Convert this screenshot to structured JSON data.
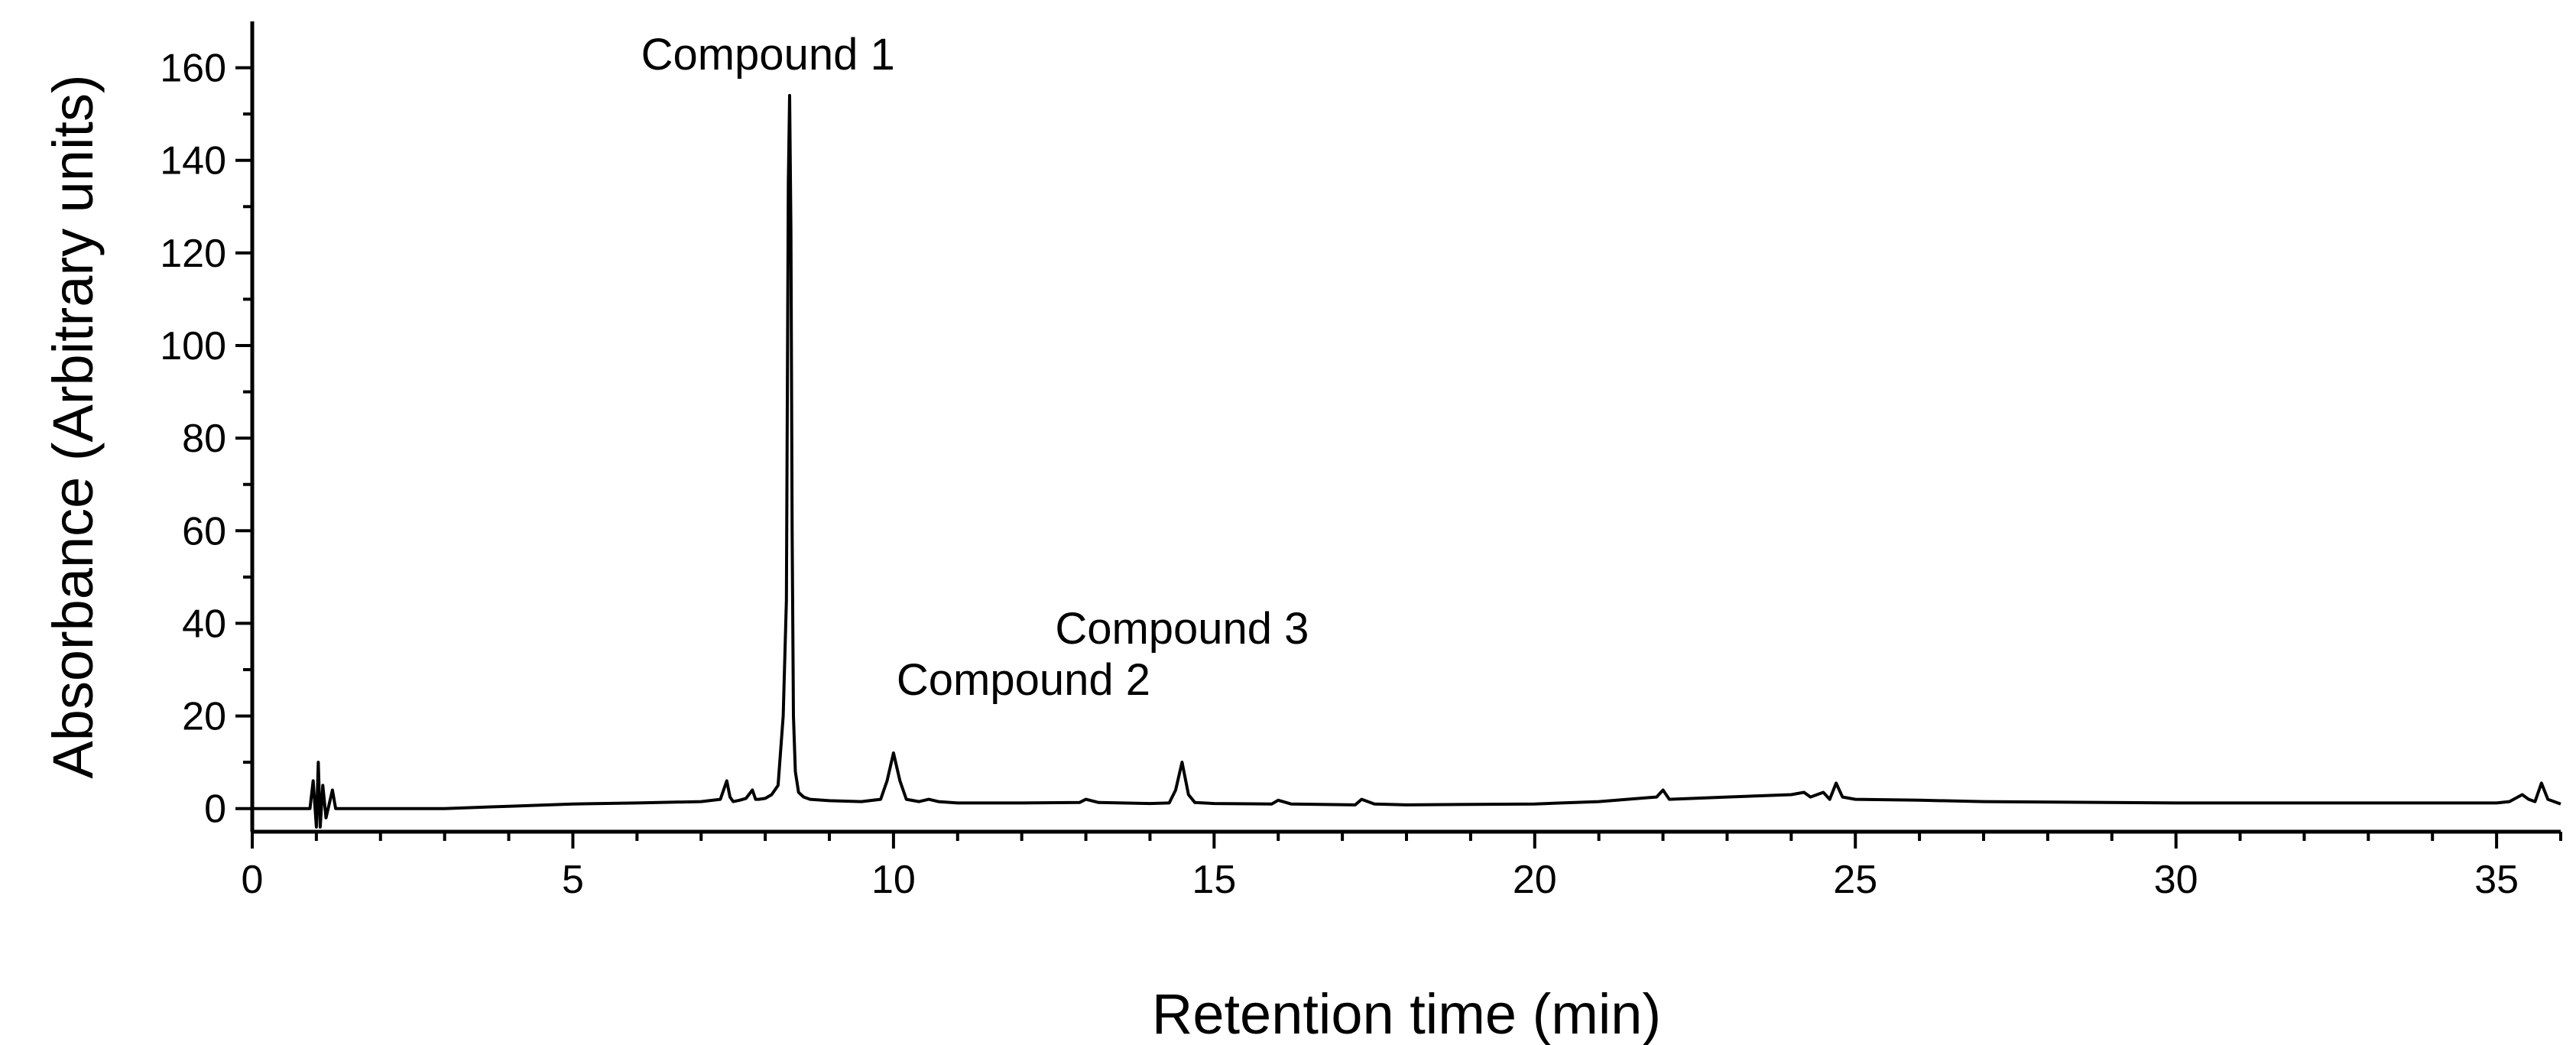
{
  "chart_data": {
    "type": "line",
    "title": "",
    "xlabel": "Retention time (min)",
    "ylabel": "Absorbance (Arbitrary units)",
    "xlim": [
      0,
      36
    ],
    "ylim": [
      -5,
      170
    ],
    "x_ticks": [
      "0",
      "5",
      "10",
      "15",
      "20",
      "25",
      "30",
      "35"
    ],
    "y_ticks": [
      "0",
      "20",
      "40",
      "60",
      "80",
      "100",
      "120",
      "140",
      "160"
    ],
    "legend": "none",
    "grid": false,
    "color": "#000000",
    "annotations": [
      {
        "text": "Compound 1",
        "x": 8.4,
        "y": 155
      },
      {
        "text": "Compound 2",
        "x": 10.0,
        "y": 12
      },
      {
        "text": "Compound 3",
        "x": 14.5,
        "y": 10
      }
    ],
    "series": [
      {
        "x": [
          0,
          0.9,
          0.95,
          1.0,
          1.03,
          1.06,
          1.1,
          1.15,
          1.2,
          1.25,
          1.3,
          1.35,
          1.5,
          2.0,
          3.0,
          4.0,
          5.0,
          6.0,
          7.0,
          7.3,
          7.4,
          7.45,
          7.5,
          7.6,
          7.7,
          7.8,
          7.85,
          7.9,
          8.0,
          8.1,
          8.2,
          8.28,
          8.33,
          8.36,
          8.38,
          8.4,
          8.42,
          8.44,
          8.47,
          8.52,
          8.6,
          8.7,
          9.0,
          9.5,
          9.8,
          9.9,
          10.0,
          10.1,
          10.2,
          10.4,
          10.55,
          10.7,
          11.0,
          12.0,
          12.9,
          13.0,
          13.2,
          14.0,
          14.3,
          14.4,
          14.5,
          14.6,
          14.7,
          15.0,
          15.9,
          16.0,
          16.2,
          17.2,
          17.3,
          17.5,
          18.0,
          20.0,
          21.0,
          21.9,
          22.0,
          22.1,
          23.0,
          24.0,
          24.2,
          24.3,
          24.5,
          24.6,
          24.7,
          24.8,
          25.0,
          26.0,
          27.0,
          30.0,
          33.0,
          35.0,
          35.2,
          35.4,
          35.5,
          35.6,
          35.7,
          35.8,
          36.0
        ],
        "y": [
          0,
          0,
          6,
          -4,
          10,
          -4,
          5,
          -2,
          1,
          4,
          0,
          0,
          0,
          0,
          0,
          0.5,
          1,
          1.2,
          1.5,
          2,
          6,
          2.5,
          1.5,
          1.8,
          2.2,
          4,
          2,
          2,
          2.2,
          3,
          5,
          20,
          45,
          135,
          154,
          125,
          60,
          20,
          8,
          3.5,
          2.5,
          2,
          1.7,
          1.5,
          2,
          6,
          12,
          6,
          2,
          1.5,
          2,
          1.5,
          1.2,
          1.2,
          1.3,
          2,
          1.3,
          1.1,
          1.2,
          4,
          10,
          3,
          1.3,
          1.1,
          1,
          1.8,
          1,
          0.8,
          2,
          1,
          0.8,
          1,
          1.5,
          2.5,
          4,
          2,
          2.5,
          3,
          3.5,
          2.5,
          3.5,
          2,
          5.5,
          2.5,
          2,
          1.8,
          1.5,
          1.2,
          1.2,
          1.2,
          1.5,
          3,
          2,
          1.5,
          5.5,
          2,
          1
        ]
      }
    ]
  }
}
